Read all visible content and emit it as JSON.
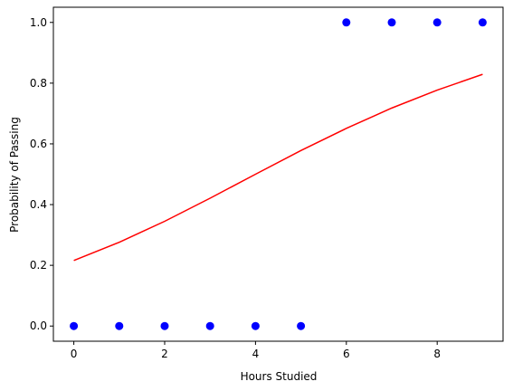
{
  "chart_data": {
    "type": "scatter",
    "xlabel": "Hours Studied",
    "ylabel": "Probability of Passing",
    "xlim": [
      -0.45,
      9.45
    ],
    "ylim": [
      -0.05,
      1.05
    ],
    "xticks": [
      0,
      2,
      4,
      6,
      8
    ],
    "yticks": [
      0.0,
      0.2,
      0.4,
      0.6,
      0.8,
      1.0
    ],
    "xtick_labels": [
      "0",
      "2",
      "4",
      "6",
      "8"
    ],
    "ytick_labels": [
      "0.0",
      "0.2",
      "0.4",
      "0.6",
      "0.8",
      "1.0"
    ],
    "grid": false,
    "series": [
      {
        "type": "scatter",
        "color": "#0000ff",
        "x": [
          0,
          1,
          2,
          3,
          4,
          5,
          6,
          7,
          8,
          9
        ],
        "y": [
          0,
          0,
          0,
          0,
          0,
          0,
          1,
          1,
          1,
          1
        ]
      },
      {
        "type": "line",
        "color": "#ff0000",
        "x": [
          0,
          1,
          2,
          3,
          4,
          5,
          6,
          7,
          8,
          9
        ],
        "y": [
          0.216,
          0.276,
          0.345,
          0.421,
          0.5,
          0.578,
          0.651,
          0.718,
          0.777,
          0.829
        ]
      }
    ]
  }
}
